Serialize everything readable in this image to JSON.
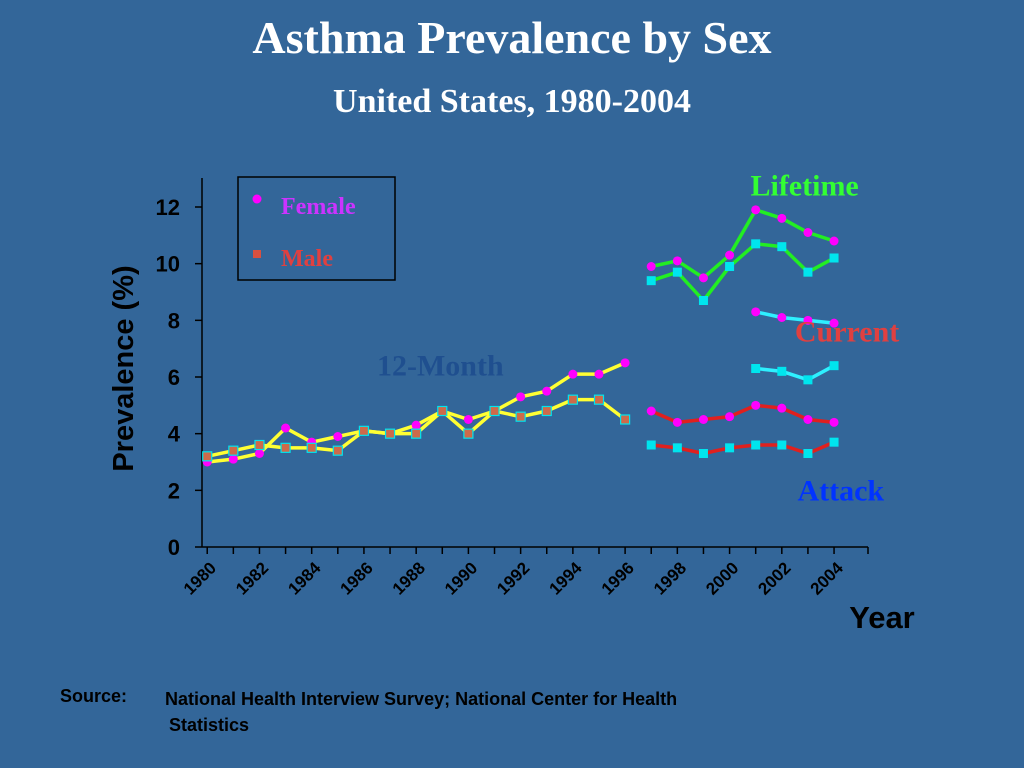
{
  "title": "Asthma Prevalence by Sex",
  "subtitle": "United States, 1980-2004",
  "source": {
    "label": "Source:",
    "line1": "National Health Interview Survey; National Center for Health",
    "line2": "Statistics"
  },
  "colors": {
    "background": "#336699",
    "female_marker": "#ff00ff",
    "male_marker": "#d2691e",
    "male_marker_cyan": "#00e5ee",
    "female_label": "#cc33ff",
    "male_label": "#e04040",
    "lifetime": "#22ee22",
    "current_female": "#2ef0ff",
    "current_male": "#e0201e",
    "twelve_month": "#ffff33",
    "lifetime_label": "#33ff33",
    "current_label": "#e04040",
    "attack_label": "#0033ff",
    "twelve_month_label": "#1f4f8f"
  },
  "chart_data": {
    "type": "line",
    "title": "Asthma Prevalence by Sex",
    "subtitle": "United States, 1980-2004",
    "xlabel": "Year",
    "ylabel": "Prevalence (%)",
    "xlim": [
      1980,
      2005
    ],
    "ylim": [
      0,
      13
    ],
    "x_ticks": [
      1980,
      1982,
      1984,
      1986,
      1988,
      1990,
      1992,
      1994,
      1996,
      1998,
      2000,
      2002,
      2004
    ],
    "y_ticks": [
      0,
      2,
      4,
      6,
      8,
      10,
      12
    ],
    "legend": {
      "position": "top-left",
      "entries": [
        {
          "name": "Female",
          "marker": "circle"
        },
        {
          "name": "Male",
          "marker": "square"
        }
      ]
    },
    "annotations": [
      {
        "text": "Lifetime",
        "x": 2000.8,
        "y": 12.4
      },
      {
        "text": "Current",
        "x": 2002.5,
        "y": 7.25
      },
      {
        "text": "12-Month",
        "x": 1986.5,
        "y": 6.05
      },
      {
        "text": "Attack",
        "x": 2002.6,
        "y": 1.65
      }
    ],
    "series": [
      {
        "name": "12-Month Female",
        "sex": "Female",
        "x": [
          1980,
          1981,
          1982,
          1983,
          1984,
          1985,
          1986,
          1987,
          1988,
          1989,
          1990,
          1991,
          1992,
          1993,
          1994,
          1995,
          1996
        ],
        "values": [
          3.0,
          3.1,
          3.3,
          4.2,
          3.7,
          3.9,
          4.1,
          4.0,
          4.3,
          4.8,
          4.5,
          4.8,
          5.3,
          5.5,
          6.1,
          6.1,
          6.5
        ]
      },
      {
        "name": "12-Month Male",
        "sex": "Male",
        "x": [
          1980,
          1981,
          1982,
          1983,
          1984,
          1985,
          1986,
          1987,
          1988,
          1989,
          1990,
          1991,
          1992,
          1993,
          1994,
          1995,
          1996
        ],
        "values": [
          3.2,
          3.4,
          3.6,
          3.5,
          3.5,
          3.4,
          4.1,
          4.0,
          4.0,
          4.8,
          4.0,
          4.8,
          4.6,
          4.8,
          5.2,
          5.2,
          4.5
        ]
      },
      {
        "name": "Lifetime Female",
        "sex": "Female",
        "x": [
          1997,
          1998,
          1999,
          2000,
          2001,
          2002,
          2003,
          2004
        ],
        "values": [
          9.9,
          10.1,
          9.5,
          10.3,
          11.9,
          11.6,
          11.1,
          10.8
        ]
      },
      {
        "name": "Lifetime Male",
        "sex": "Male",
        "x": [
          1997,
          1998,
          1999,
          2000,
          2001,
          2002,
          2003,
          2004
        ],
        "values": [
          9.4,
          9.7,
          8.7,
          9.9,
          10.7,
          10.6,
          9.7,
          10.2
        ]
      },
      {
        "name": "Current Female",
        "sex": "Female",
        "x": [
          2001,
          2002,
          2003,
          2004
        ],
        "values": [
          8.3,
          8.1,
          8.0,
          7.9
        ]
      },
      {
        "name": "Current Male",
        "sex": "Male",
        "x": [
          2001,
          2002,
          2003,
          2004
        ],
        "values": [
          6.3,
          6.2,
          5.9,
          6.4
        ]
      },
      {
        "name": "Attack Female",
        "sex": "Female",
        "x": [
          1997,
          1998,
          1999,
          2000,
          2001,
          2002,
          2003,
          2004
        ],
        "values": [
          4.8,
          4.4,
          4.5,
          4.6,
          5.0,
          4.9,
          4.5,
          4.4
        ]
      },
      {
        "name": "Attack Male",
        "sex": "Male",
        "x": [
          1997,
          1998,
          1999,
          2000,
          2001,
          2002,
          2003,
          2004
        ],
        "values": [
          3.6,
          3.5,
          3.3,
          3.5,
          3.6,
          3.6,
          3.3,
          3.7
        ]
      }
    ]
  }
}
